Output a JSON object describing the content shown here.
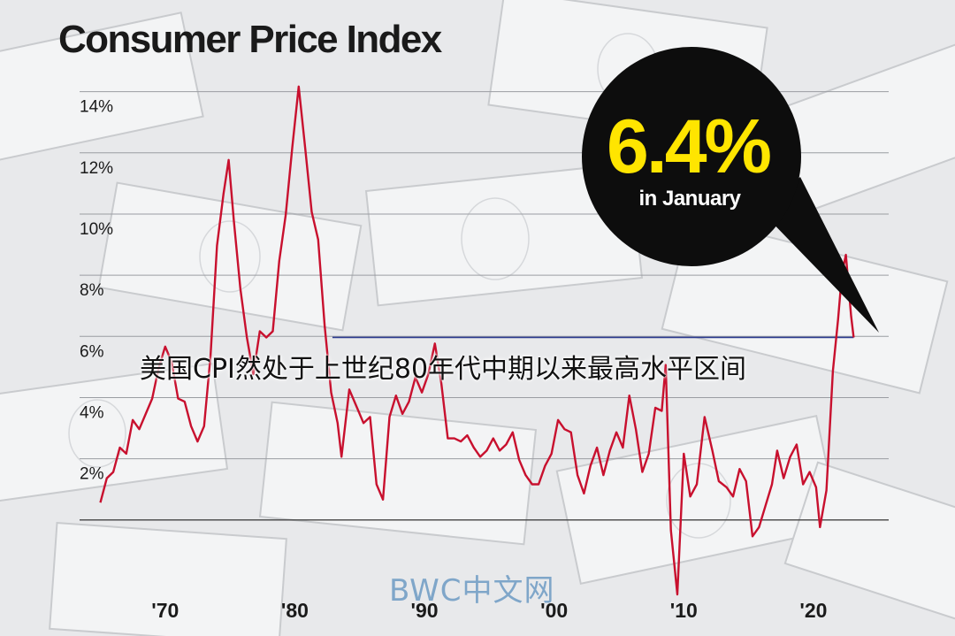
{
  "title": "Consumer Price Index",
  "annotation": "美国CPI然处于上世纪80年代中期以来最高水平区间",
  "watermark": "BWC中文网",
  "callout": {
    "value": "6.4%",
    "label": "in January"
  },
  "colors": {
    "line": "#c8102e",
    "reference_line": "#2b3a8f",
    "value": "#ffe500",
    "bubble": "#0d0d0d"
  },
  "chart_data": {
    "type": "line",
    "title": "Consumer Price Index",
    "xlabel": "",
    "ylabel": "",
    "ylim": [
      -2,
      15
    ],
    "xlim": [
      1963.4,
      2025.8
    ],
    "y_ticks": [
      2,
      4,
      6,
      8,
      10,
      12,
      14
    ],
    "y_tick_labels": [
      "2%",
      "4%",
      "6%",
      "8%",
      "10%",
      "12%",
      "14%"
    ],
    "x_ticks": [
      1970,
      1980,
      1990,
      2000,
      2010,
      2020
    ],
    "x_tick_labels": [
      "'70",
      "'80",
      "'90",
      "'00",
      "'10",
      "'20"
    ],
    "grid": true,
    "reference_line": {
      "y": 6.4,
      "x_from": 1982.9,
      "x_to": 2023.1
    },
    "series": [
      {
        "values": [
          [
            1965.0,
            1.0
          ],
          [
            1965.5,
            1.8
          ],
          [
            1966.0,
            2.0
          ],
          [
            1966.5,
            2.8
          ],
          [
            1967.0,
            2.6
          ],
          [
            1967.5,
            3.7
          ],
          [
            1968.0,
            3.4
          ],
          [
            1968.5,
            3.9
          ],
          [
            1969.0,
            4.4
          ],
          [
            1969.5,
            5.4
          ],
          [
            1970.0,
            6.1
          ],
          [
            1970.5,
            5.6
          ],
          [
            1971.0,
            4.4
          ],
          [
            1971.5,
            4.3
          ],
          [
            1972.0,
            3.5
          ],
          [
            1972.5,
            3.0
          ],
          [
            1973.0,
            3.5
          ],
          [
            1973.5,
            5.8
          ],
          [
            1974.0,
            9.4
          ],
          [
            1974.5,
            11.1
          ],
          [
            1974.9,
            12.2
          ],
          [
            1975.3,
            10.2
          ],
          [
            1975.8,
            8.0
          ],
          [
            1976.3,
            6.4
          ],
          [
            1976.8,
            5.2
          ],
          [
            1977.3,
            6.6
          ],
          [
            1977.8,
            6.4
          ],
          [
            1978.3,
            6.6
          ],
          [
            1978.8,
            8.9
          ],
          [
            1979.3,
            10.4
          ],
          [
            1979.8,
            12.6
          ],
          [
            1980.3,
            14.6
          ],
          [
            1980.8,
            12.6
          ],
          [
            1981.3,
            10.5
          ],
          [
            1981.8,
            9.6
          ],
          [
            1982.3,
            6.8
          ],
          [
            1982.8,
            4.6
          ],
          [
            1983.3,
            3.6
          ],
          [
            1983.6,
            2.5
          ],
          [
            1984.2,
            4.7
          ],
          [
            1984.8,
            4.1
          ],
          [
            1985.3,
            3.6
          ],
          [
            1985.8,
            3.8
          ],
          [
            1986.3,
            1.6
          ],
          [
            1986.8,
            1.1
          ],
          [
            1987.3,
            3.8
          ],
          [
            1987.8,
            4.5
          ],
          [
            1988.3,
            3.9
          ],
          [
            1988.8,
            4.3
          ],
          [
            1989.3,
            5.1
          ],
          [
            1989.8,
            4.6
          ],
          [
            1990.3,
            5.2
          ],
          [
            1990.8,
            6.2
          ],
          [
            1991.3,
            4.9
          ],
          [
            1991.8,
            3.1
          ],
          [
            1992.3,
            3.1
          ],
          [
            1992.8,
            3.0
          ],
          [
            1993.3,
            3.2
          ],
          [
            1993.8,
            2.8
          ],
          [
            1994.3,
            2.5
          ],
          [
            1994.8,
            2.7
          ],
          [
            1995.3,
            3.1
          ],
          [
            1995.8,
            2.7
          ],
          [
            1996.3,
            2.9
          ],
          [
            1996.8,
            3.3
          ],
          [
            1997.3,
            2.4
          ],
          [
            1997.8,
            1.9
          ],
          [
            1998.3,
            1.6
          ],
          [
            1998.8,
            1.6
          ],
          [
            1999.3,
            2.2
          ],
          [
            1999.8,
            2.6
          ],
          [
            2000.3,
            3.7
          ],
          [
            2000.8,
            3.4
          ],
          [
            2001.3,
            3.3
          ],
          [
            2001.8,
            1.9
          ],
          [
            2002.3,
            1.3
          ],
          [
            2002.8,
            2.2
          ],
          [
            2003.3,
            2.8
          ],
          [
            2003.8,
            1.9
          ],
          [
            2004.3,
            2.7
          ],
          [
            2004.8,
            3.3
          ],
          [
            2005.3,
            2.8
          ],
          [
            2005.8,
            4.5
          ],
          [
            2006.3,
            3.4
          ],
          [
            2006.8,
            2.0
          ],
          [
            2007.3,
            2.6
          ],
          [
            2007.8,
            4.1
          ],
          [
            2008.3,
            4.0
          ],
          [
            2008.6,
            5.5
          ],
          [
            2009.0,
            0.1
          ],
          [
            2009.5,
            -2.0
          ],
          [
            2010.0,
            2.6
          ],
          [
            2010.5,
            1.2
          ],
          [
            2011.0,
            1.6
          ],
          [
            2011.6,
            3.8
          ],
          [
            2012.2,
            2.7
          ],
          [
            2012.7,
            1.7
          ],
          [
            2013.3,
            1.5
          ],
          [
            2013.8,
            1.2
          ],
          [
            2014.3,
            2.1
          ],
          [
            2014.8,
            1.7
          ],
          [
            2015.3,
            -0.1
          ],
          [
            2015.8,
            0.2
          ],
          [
            2016.3,
            0.9
          ],
          [
            2016.8,
            1.6
          ],
          [
            2017.2,
            2.7
          ],
          [
            2017.7,
            1.8
          ],
          [
            2018.2,
            2.5
          ],
          [
            2018.7,
            2.9
          ],
          [
            2019.2,
            1.6
          ],
          [
            2019.7,
            2.0
          ],
          [
            2020.2,
            1.5
          ],
          [
            2020.5,
            0.2
          ],
          [
            2021.0,
            1.4
          ],
          [
            2021.5,
            5.3
          ],
          [
            2021.9,
            7.0
          ],
          [
            2022.2,
            8.5
          ],
          [
            2022.5,
            9.1
          ],
          [
            2022.9,
            7.1
          ],
          [
            2023.1,
            6.4
          ]
        ]
      }
    ]
  }
}
